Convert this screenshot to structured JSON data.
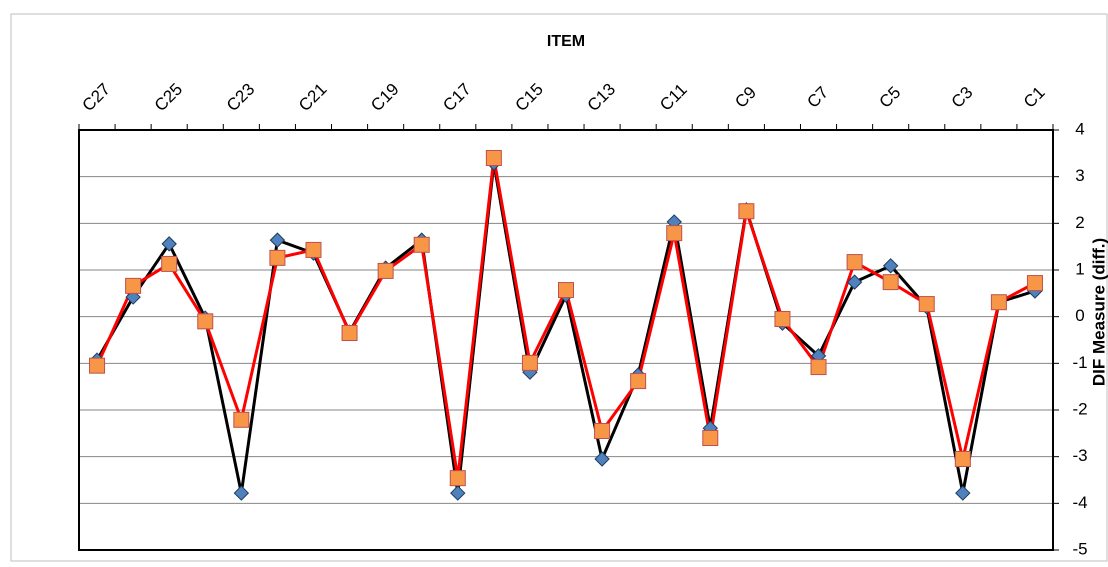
{
  "chart_data": {
    "type": "line",
    "x_label": "ITEM",
    "y_label": "DIF Measure (diff.)",
    "categories": [
      "C27",
      null,
      "C25",
      null,
      "C23",
      null,
      "C21",
      null,
      "C19",
      null,
      "C17",
      null,
      "C15",
      null,
      "C13",
      null,
      "C11",
      null,
      "C9",
      null,
      "C7",
      null,
      "C5",
      null,
      "C3",
      null,
      "C1"
    ],
    "series": [
      {
        "color": "#000000",
        "marker": "diamond",
        "marker_color": "#4f81bd",
        "values": [
          -0.93,
          0.42,
          1.56,
          -0.03,
          -3.78,
          1.64,
          1.36,
          -0.33,
          1.04,
          1.64,
          -3.78,
          3.29,
          -1.19,
          0.46,
          -3.05,
          -1.25,
          2.03,
          -2.39,
          2.29,
          -0.14,
          -0.84,
          0.74,
          1.09,
          0.21,
          -3.78,
          0.31,
          0.55
        ]
      },
      {
        "color": "#ff0000",
        "marker": "square",
        "marker_color": "#f79646",
        "values": [
          -1.05,
          0.66,
          1.13,
          -0.1,
          -2.21,
          1.26,
          1.43,
          -0.35,
          0.98,
          1.54,
          -3.46,
          3.4,
          -0.99,
          0.57,
          -2.45,
          -1.38,
          1.79,
          -2.6,
          2.26,
          -0.05,
          -1.08,
          1.17,
          0.74,
          0.27,
          -3.05,
          0.31,
          0.72
        ]
      }
    ],
    "ylim": [
      -5,
      4
    ],
    "yticks": [
      4,
      3,
      2,
      1,
      0,
      -1,
      -2,
      -3,
      -4,
      -5
    ],
    "grid": true,
    "x_axis_position": "top",
    "y_axis_position": "right"
  }
}
